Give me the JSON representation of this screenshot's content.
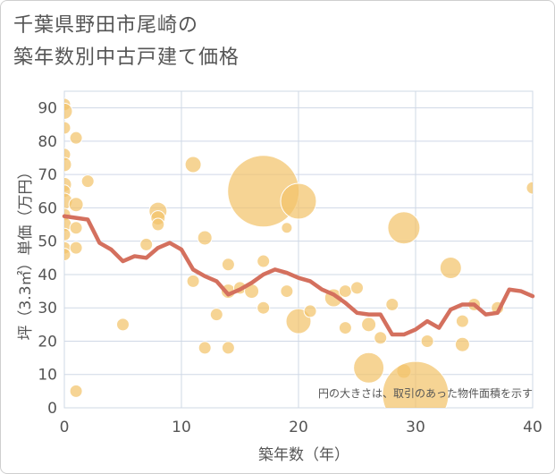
{
  "title_lines": [
    "千葉県野田市尾崎の",
    "築年数別中古戸建て価格"
  ],
  "chart_data": {
    "type": "scatter",
    "xlabel": "築年数（年）",
    "ylabel": "坪（3.3㎡）単価（万円）",
    "xlim": [
      0,
      40
    ],
    "ylim": [
      0,
      95
    ],
    "xticks": [
      0,
      10,
      20,
      30,
      40
    ],
    "yticks": [
      0,
      10,
      20,
      30,
      40,
      50,
      60,
      70,
      80,
      90
    ],
    "grid": true,
    "annotation": "円の大きさは、取引のあった物件面積を示す",
    "colors": {
      "bubble": "#f2c36b",
      "line": "#d4705e",
      "grid": "#cfd8e6"
    },
    "bubbles": [
      {
        "x": 0,
        "y": 91,
        "r": 7
      },
      {
        "x": 0,
        "y": 89,
        "r": 9
      },
      {
        "x": 0,
        "y": 84,
        "r": 7
      },
      {
        "x": 0,
        "y": 76,
        "r": 7
      },
      {
        "x": 0,
        "y": 73,
        "r": 8
      },
      {
        "x": 0,
        "y": 67,
        "r": 8
      },
      {
        "x": 0,
        "y": 65,
        "r": 7
      },
      {
        "x": 0,
        "y": 62,
        "r": 9
      },
      {
        "x": 0,
        "y": 58,
        "r": 7
      },
      {
        "x": 0,
        "y": 55,
        "r": 8
      },
      {
        "x": 0,
        "y": 52,
        "r": 7
      },
      {
        "x": 0,
        "y": 48,
        "r": 7
      },
      {
        "x": 0,
        "y": 46,
        "r": 7
      },
      {
        "x": 1,
        "y": 81,
        "r": 7
      },
      {
        "x": 1,
        "y": 61,
        "r": 8
      },
      {
        "x": 1,
        "y": 54,
        "r": 7
      },
      {
        "x": 1,
        "y": 48,
        "r": 7
      },
      {
        "x": 1,
        "y": 5,
        "r": 7
      },
      {
        "x": 2,
        "y": 68,
        "r": 7
      },
      {
        "x": 5,
        "y": 25,
        "r": 7
      },
      {
        "x": 7,
        "y": 49,
        "r": 7
      },
      {
        "x": 8,
        "y": 59,
        "r": 10
      },
      {
        "x": 8,
        "y": 57,
        "r": 8
      },
      {
        "x": 8,
        "y": 55,
        "r": 7
      },
      {
        "x": 11,
        "y": 73,
        "r": 9
      },
      {
        "x": 11,
        "y": 38,
        "r": 7
      },
      {
        "x": 12,
        "y": 51,
        "r": 8
      },
      {
        "x": 12,
        "y": 18,
        "r": 7
      },
      {
        "x": 13,
        "y": 28,
        "r": 7
      },
      {
        "x": 14,
        "y": 43,
        "r": 7
      },
      {
        "x": 14,
        "y": 35,
        "r": 8
      },
      {
        "x": 14,
        "y": 18,
        "r": 7
      },
      {
        "x": 15,
        "y": 36,
        "r": 7
      },
      {
        "x": 16,
        "y": 35,
        "r": 8
      },
      {
        "x": 17,
        "y": 65,
        "r": 40
      },
      {
        "x": 17,
        "y": 44,
        "r": 7
      },
      {
        "x": 17,
        "y": 30,
        "r": 7
      },
      {
        "x": 19,
        "y": 54,
        "r": 6
      },
      {
        "x": 19,
        "y": 35,
        "r": 7
      },
      {
        "x": 20,
        "y": 62,
        "r": 20
      },
      {
        "x": 20,
        "y": 26,
        "r": 14
      },
      {
        "x": 21,
        "y": 29,
        "r": 7
      },
      {
        "x": 23,
        "y": 33,
        "r": 10
      },
      {
        "x": 24,
        "y": 35,
        "r": 7
      },
      {
        "x": 24,
        "y": 24,
        "r": 7
      },
      {
        "x": 25,
        "y": 36,
        "r": 7
      },
      {
        "x": 26,
        "y": 25,
        "r": 8
      },
      {
        "x": 26,
        "y": 12,
        "r": 17
      },
      {
        "x": 27,
        "y": 21,
        "r": 7
      },
      {
        "x": 28,
        "y": 31,
        "r": 7
      },
      {
        "x": 29,
        "y": 54,
        "r": 18
      },
      {
        "x": 29,
        "y": 11,
        "r": 8
      },
      {
        "x": 30,
        "y": 4,
        "r": 37
      },
      {
        "x": 31,
        "y": 20,
        "r": 7
      },
      {
        "x": 33,
        "y": 42,
        "r": 12
      },
      {
        "x": 34,
        "y": 26,
        "r": 7
      },
      {
        "x": 34,
        "y": 19,
        "r": 8
      },
      {
        "x": 35,
        "y": 31,
        "r": 7
      },
      {
        "x": 37,
        "y": 30,
        "r": 7
      },
      {
        "x": 40,
        "y": 66,
        "r": 7
      }
    ],
    "line": {
      "x": [
        0,
        1,
        2,
        3,
        4,
        5,
        6,
        7,
        8,
        9,
        10,
        11,
        12,
        13,
        14,
        15,
        16,
        17,
        18,
        19,
        20,
        21,
        22,
        23,
        24,
        25,
        26,
        27,
        28,
        29,
        30,
        31,
        32,
        33,
        34,
        35,
        36,
        37,
        38,
        39,
        40
      ],
      "y": [
        57.5,
        57,
        56.5,
        49.5,
        47.5,
        44,
        45.5,
        45,
        48,
        49.5,
        47.5,
        41.5,
        39.5,
        38,
        34,
        35.5,
        37.5,
        40,
        41.5,
        40.5,
        39,
        38,
        35.5,
        34,
        31.5,
        28.5,
        28,
        28,
        22,
        22,
        23.5,
        26,
        24,
        29.5,
        31,
        31,
        28,
        28.5,
        35.5,
        35,
        33.5
      ]
    }
  }
}
